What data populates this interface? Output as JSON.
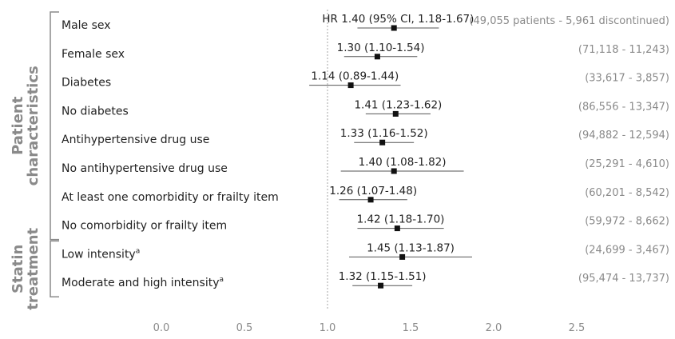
{
  "chart_data": {
    "type": "forest",
    "xlim": [
      0.0,
      2.5
    ],
    "reference_line": 1.0,
    "x_ticks": [
      "0.0",
      "0.5",
      "1.0",
      "1.5",
      "2.0",
      "2.5"
    ],
    "groups": [
      {
        "label_lines": [
          "Patient",
          "characteristics"
        ],
        "rows": [
          0,
          7
        ]
      },
      {
        "label_lines": [
          "Statin",
          "treatment"
        ],
        "rows": [
          8,
          9
        ]
      }
    ],
    "rows": [
      {
        "label": "Male sex",
        "hr": 1.4,
        "lower": 1.18,
        "upper": 1.67,
        "estimate_text": "HR 1.40 (95% CI, 1.18-1.67)",
        "counts_text": "(49,055 patients - 5,961 discontinued)"
      },
      {
        "label": "Female sex",
        "hr": 1.3,
        "lower": 1.1,
        "upper": 1.54,
        "estimate_text": "1.30 (1.10-1.54)",
        "counts_text": "(71,118 - 11,243)"
      },
      {
        "label": "Diabetes",
        "hr": 1.14,
        "lower": 0.89,
        "upper": 1.44,
        "estimate_text": "1.14 (0.89-1.44)",
        "counts_text": "(33,617 - 3,857)"
      },
      {
        "label": "No diabetes",
        "hr": 1.41,
        "lower": 1.23,
        "upper": 1.62,
        "estimate_text": "1.41 (1.23-1.62)",
        "counts_text": "(86,556 - 13,347)"
      },
      {
        "label": "Antihypertensive drug use",
        "hr": 1.33,
        "lower": 1.16,
        "upper": 1.52,
        "estimate_text": "1.33 (1.16-1.52)",
        "counts_text": "(94,882 - 12,594)"
      },
      {
        "label": "No antihypertensive drug use",
        "hr": 1.4,
        "lower": 1.08,
        "upper": 1.82,
        "estimate_text": "1.40 (1.08-1.82)",
        "counts_text": "(25,291 - 4,610)"
      },
      {
        "label": "At least one comorbidity or frailty item",
        "hr": 1.26,
        "lower": 1.07,
        "upper": 1.48,
        "estimate_text": "1.26 (1.07-1.48)",
        "counts_text": "(60,201 - 8,542)"
      },
      {
        "label": "No comorbidity or frailty item",
        "hr": 1.42,
        "lower": 1.18,
        "upper": 1.7,
        "estimate_text": "1.42 (1.18-1.70)",
        "counts_text": "(59,972 - 8,662)"
      },
      {
        "label": "Low intensity",
        "label_sup": "a",
        "hr": 1.45,
        "lower": 1.13,
        "upper": 1.87,
        "estimate_text": "1.45 (1.13-1.87)",
        "counts_text": "(24,699 - 3,467)"
      },
      {
        "label": "Moderate and high intensity",
        "label_sup": "a",
        "hr": 1.32,
        "lower": 1.15,
        "upper": 1.51,
        "estimate_text": "1.32 (1.15-1.51)",
        "counts_text": "(95,474 - 13,737)"
      }
    ]
  }
}
